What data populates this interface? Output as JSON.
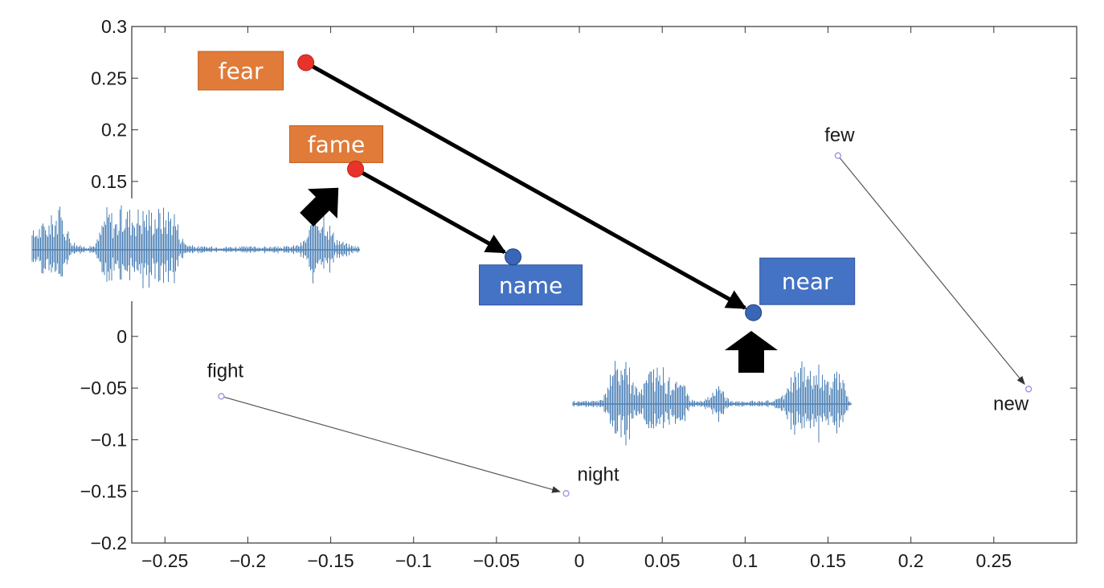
{
  "chart_data": {
    "type": "scatter",
    "title": "",
    "xlabel": "",
    "ylabel": "",
    "xlim": [
      -0.27,
      0.3
    ],
    "ylim": [
      -0.2,
      0.3
    ],
    "grid": false,
    "x_ticks": [
      -0.25,
      -0.2,
      -0.15,
      -0.1,
      -0.05,
      0,
      0.05,
      0.1,
      0.15,
      0.2,
      0.25
    ],
    "x_tick_labels": [
      "−0.25",
      "−0.2",
      "−0.15",
      "−0.1",
      "−0.05",
      "0",
      "0.05",
      "0.1",
      "0.15",
      "0.2",
      "0.25"
    ],
    "y_ticks": [
      0.3,
      0.25,
      0.2,
      0.15,
      0.1,
      0.05,
      0,
      -0.05,
      -0.1,
      -0.15,
      -0.2
    ],
    "y_tick_labels": [
      "0.3",
      "0.25",
      "0.2",
      "0.15",
      "",
      "",
      "0",
      "−0.05",
      "−0.1",
      "−0.15",
      "−0.2"
    ],
    "points": [
      {
        "word": "fear",
        "x": -0.165,
        "y": 0.265,
        "style": "source-highlight",
        "color": "#e8332a",
        "box_color": "#e07b39"
      },
      {
        "word": "fame",
        "x": -0.135,
        "y": 0.162,
        "style": "source-highlight",
        "color": "#e8332a",
        "box_color": "#e07b39"
      },
      {
        "word": "name",
        "x": -0.04,
        "y": 0.077,
        "style": "target-highlight",
        "color": "#3a66b8",
        "box_color": "#4472c4"
      },
      {
        "word": "near",
        "x": 0.105,
        "y": 0.023,
        "style": "target-highlight",
        "color": "#3a66b8",
        "box_color": "#4472c4"
      },
      {
        "word": "few",
        "x": 0.156,
        "y": 0.175,
        "style": "plain",
        "color": "#8a8ae0"
      },
      {
        "word": "new",
        "x": 0.271,
        "y": -0.051,
        "style": "plain",
        "color": "#8a8ae0"
      },
      {
        "word": "fight",
        "x": -0.216,
        "y": -0.058,
        "style": "plain",
        "color": "#8a8ae0"
      },
      {
        "word": "night",
        "x": -0.008,
        "y": -0.152,
        "style": "plain",
        "color": "#8a8ae0"
      }
    ],
    "arrows": [
      {
        "from": "fear",
        "to": "near",
        "style": "bold"
      },
      {
        "from": "fame",
        "to": "name",
        "style": "bold"
      },
      {
        "from": "few",
        "to": "new",
        "style": "thin"
      },
      {
        "from": "fight",
        "to": "night",
        "style": "thin"
      }
    ],
    "overlays": [
      {
        "kind": "waveform",
        "name": "waveform-left",
        "color": "#4a7fb5"
      },
      {
        "kind": "waveform",
        "name": "waveform-right",
        "color": "#4a7fb5"
      },
      {
        "kind": "block-arrow",
        "name": "block-arrow-fame",
        "direction": "up-right",
        "color": "#000000"
      },
      {
        "kind": "block-arrow",
        "name": "block-arrow-near",
        "direction": "up",
        "color": "#000000"
      }
    ]
  }
}
